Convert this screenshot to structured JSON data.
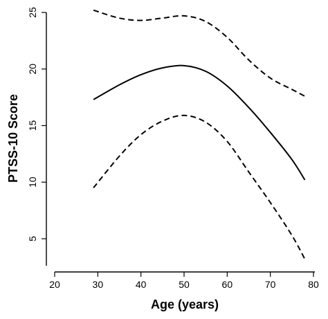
{
  "chart_data": {
    "type": "line",
    "title": "",
    "xlabel": "Age (years)",
    "ylabel": "PTSS-10 Score",
    "xlim": [
      20,
      80
    ],
    "ylim": [
      3,
      25
    ],
    "xticks": [
      20,
      30,
      40,
      50,
      60,
      70,
      80
    ],
    "yticks": [
      5,
      10,
      15,
      20,
      25
    ],
    "grid": false,
    "legend": "none",
    "series": [
      {
        "style": "solid",
        "x": [
          29,
          35,
          40,
          45,
          50,
          55,
          60,
          65,
          70,
          75,
          78
        ],
        "y": [
          17.3,
          18.6,
          19.5,
          20.1,
          20.3,
          19.8,
          18.5,
          16.6,
          14.4,
          12.0,
          10.2
        ]
      },
      {
        "style": "dashed",
        "x": [
          29,
          35,
          40,
          45,
          50,
          55,
          60,
          65,
          70,
          75,
          78
        ],
        "y": [
          25.2,
          24.5,
          24.3,
          24.5,
          24.7,
          24.2,
          22.8,
          20.8,
          19.2,
          18.2,
          17.6
        ]
      },
      {
        "style": "dashed",
        "x": [
          29,
          35,
          40,
          45,
          50,
          55,
          60,
          65,
          70,
          75,
          78
        ],
        "y": [
          9.5,
          12.3,
          14.2,
          15.4,
          15.9,
          15.3,
          13.6,
          10.9,
          8.2,
          5.3,
          3.2
        ]
      }
    ]
  }
}
